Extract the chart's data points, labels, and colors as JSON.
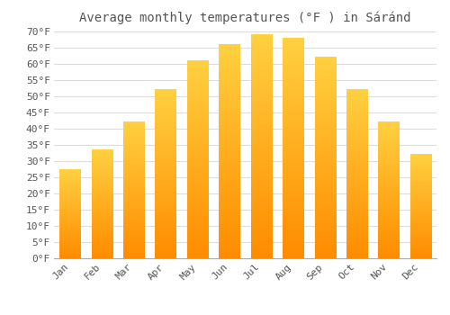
{
  "title": "Average monthly temperatures (°F ) in Sáránd",
  "months": [
    "Jan",
    "Feb",
    "Mar",
    "Apr",
    "May",
    "Jun",
    "Jul",
    "Aug",
    "Sep",
    "Oct",
    "Nov",
    "Dec"
  ],
  "values": [
    27.5,
    33.5,
    42,
    52,
    61,
    66,
    69,
    68,
    62,
    52,
    42,
    32
  ],
  "bar_color_top": "#FFB300",
  "bar_color_bottom": "#FF8C00",
  "bar_edge_color": "#FFA000",
  "background_color": "#FFFFFF",
  "grid_color": "#DDDDDD",
  "text_color": "#555555",
  "ymin": 0,
  "ymax": 70,
  "ytick_step": 5,
  "title_fontsize": 10,
  "tick_fontsize": 8,
  "xlabel_rotation": 45
}
